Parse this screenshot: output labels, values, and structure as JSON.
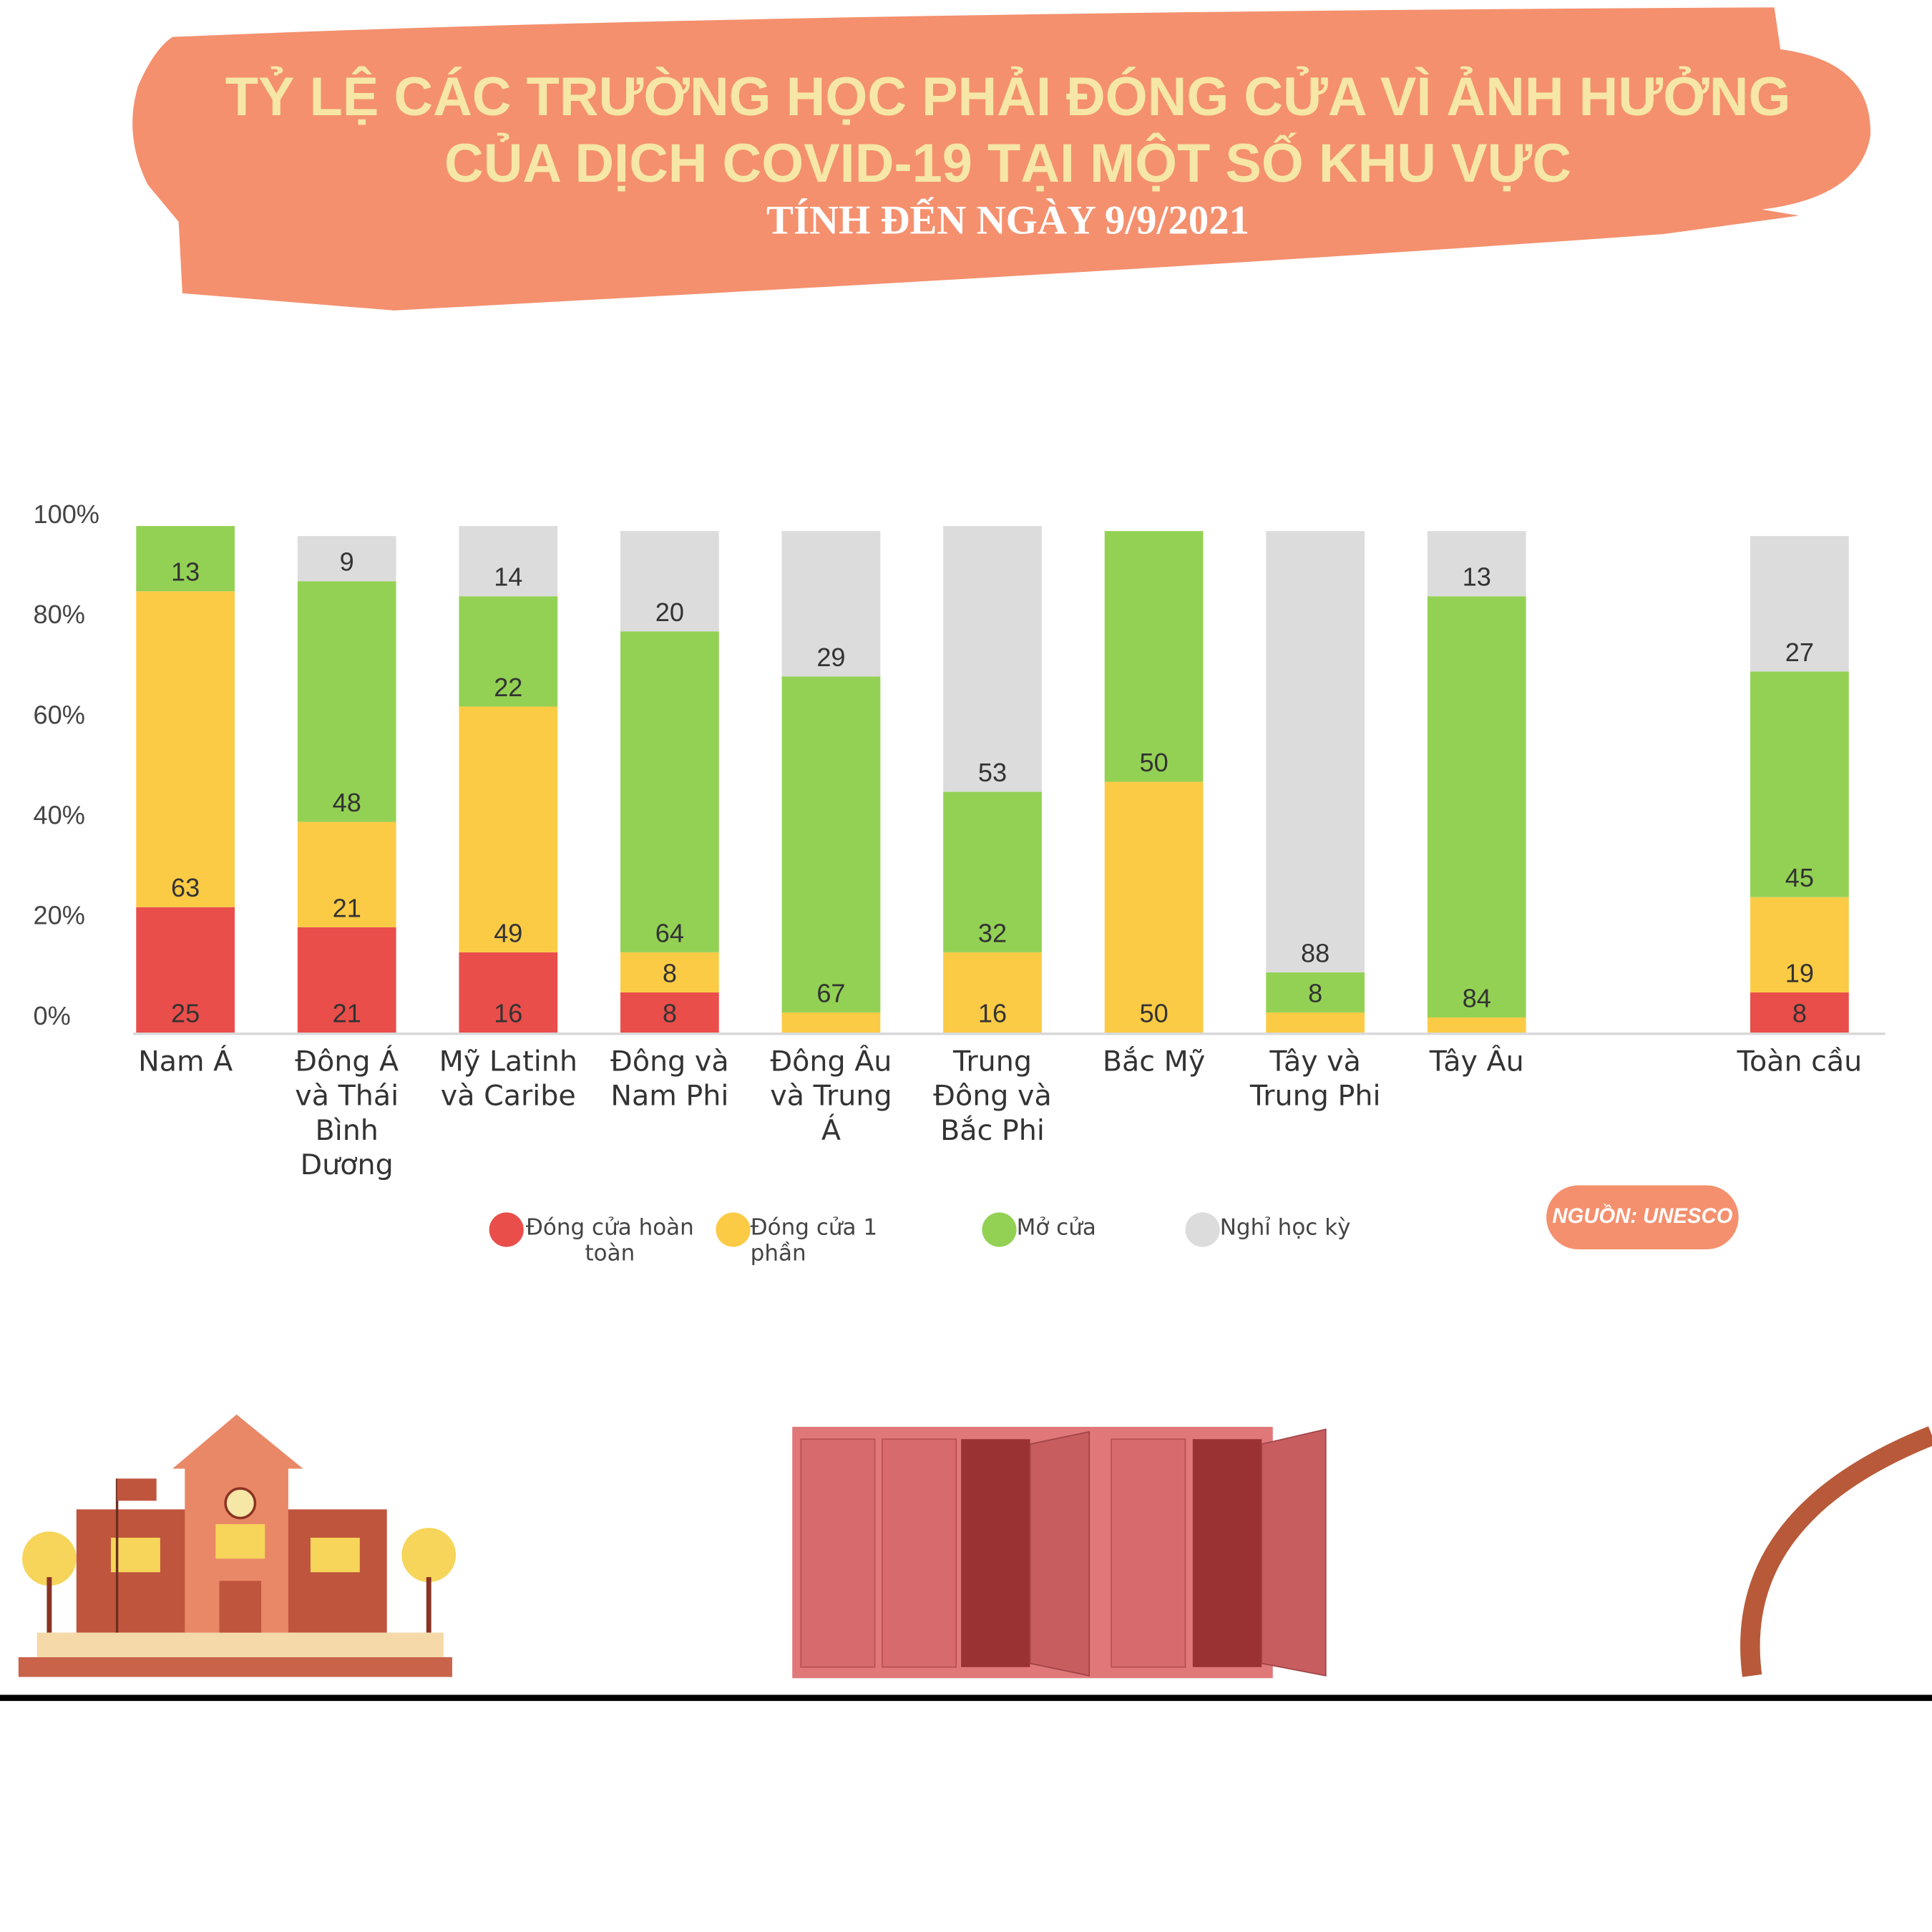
{
  "chart_data": {
    "type": "stacked_bar",
    "title": [
      "TỶ LỆ CÁC TRƯỜNG HỌC PHẢI ĐÓNG CỬA VÌ ẢNH HƯỞNG",
      "CỦA DỊCH COVID-19 TẠI MỘT SỐ KHU VỰC"
    ],
    "subtitle": "TÍNH ĐẾN NGÀY 9/9/2021",
    "source": "NGUỒN: UNESCO",
    "categories": [
      "Nam Á",
      "Đông Á và Thái Bình Dương",
      "Mỹ Latinh và Caribe",
      "Đông và Nam Phi",
      "Đông Âu và Trung Á",
      "Trung Đông và Bắc Phi",
      "Bắc Mỹ",
      "Tây và Trung Phi",
      "Tây Âu",
      null,
      "Toàn cầu"
    ],
    "series": [
      {
        "name": "Đóng cửa hoàn toàn",
        "color": "#e94e4b",
        "values": [
          25,
          21,
          16,
          8,
          0,
          0,
          0,
          0,
          0,
          null,
          8
        ]
      },
      {
        "name": "Đóng cửa 1 phần",
        "color": "#fccb45",
        "values": [
          63,
          21,
          49,
          8,
          4,
          16,
          50,
          4,
          3,
          null,
          19
        ]
      },
      {
        "name": "Mở cửa",
        "color": "#93d154",
        "values": [
          13,
          48,
          22,
          64,
          67,
          32,
          50,
          8,
          84,
          null,
          45
        ]
      },
      {
        "name": "Nghỉ học kỳ",
        "color": "#dcdcdc",
        "values": [
          0,
          9,
          14,
          20,
          29,
          53,
          0,
          88,
          13,
          null,
          27
        ]
      }
    ],
    "ylim": [
      0,
      100
    ],
    "yticks": [
      {
        "value": 0,
        "label": "0%"
      },
      {
        "value": 20,
        "label": "20%"
      },
      {
        "value": 40,
        "label": "40%"
      },
      {
        "value": 60,
        "label": "60%"
      },
      {
        "value": 80,
        "label": "80%"
      },
      {
        "value": 100,
        "label": "100%"
      }
    ],
    "legend": "bottom"
  }
}
